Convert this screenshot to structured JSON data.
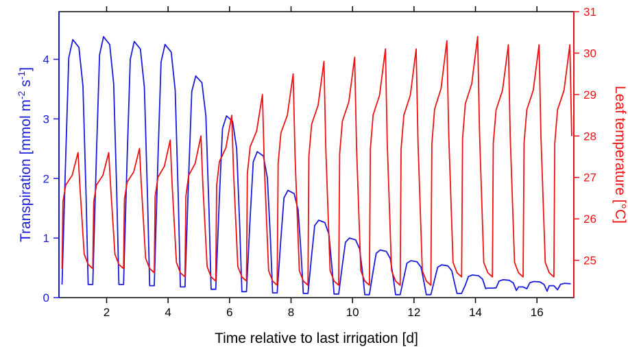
{
  "chart_data": {
    "type": "line",
    "title": "",
    "xlabel": "Time relative to last irrigation [d]",
    "ylabel_left": "Transpiration [mmol m-2 s-1]",
    "ylabel_left_parts": {
      "base": "Transpiration [mmol m",
      "sup1": "-2",
      "mid": " s",
      "sup2": "-1",
      "end": "]"
    },
    "ylabel_right": "Leaf temperature [°C]",
    "xlim": [
      0.45,
      17.2
    ],
    "ylim_left": [
      0,
      4.8
    ],
    "ylim_right": [
      24.1,
      31
    ],
    "x_ticks": [
      2,
      4,
      6,
      8,
      10,
      12,
      14,
      16
    ],
    "x_tick_labels": [
      "2",
      "4",
      "6",
      "8",
      "10",
      "12",
      "14",
      "16"
    ],
    "y_left_ticks": [
      0,
      1,
      2,
      3,
      4
    ],
    "y_left_tick_labels": [
      "0",
      "1",
      "2",
      "3",
      "4"
    ],
    "y_right_ticks": [
      25,
      26,
      27,
      28,
      29,
      30,
      31
    ],
    "y_right_tick_labels": [
      "25",
      "26",
      "27",
      "28",
      "29",
      "30",
      "31"
    ],
    "grid": false,
    "legend": "none",
    "colors": {
      "transpiration": "#1a1adc",
      "leaf_temperature": "#ee1111",
      "axes": "#000000"
    },
    "series": [
      {
        "axis": "left",
        "days": [
          {
            "start": 0.55,
            "peak": 4.33,
            "night": 0.22
          },
          {
            "start": 1.55,
            "peak": 4.38,
            "night": 0.22
          },
          {
            "start": 2.55,
            "peak": 4.3,
            "night": 0.22
          },
          {
            "start": 3.55,
            "peak": 4.25,
            "night": 0.2
          },
          {
            "start": 4.55,
            "peak": 3.72,
            "night": 0.18
          },
          {
            "start": 5.55,
            "peak": 3.05,
            "night": 0.14
          },
          {
            "start": 6.55,
            "peak": 2.45,
            "night": 0.1
          },
          {
            "start": 7.55,
            "peak": 1.8,
            "night": 0.08
          },
          {
            "start": 8.55,
            "peak": 1.3,
            "night": 0.07
          },
          {
            "start": 9.55,
            "peak": 1.0,
            "night": 0.06
          },
          {
            "start": 10.55,
            "peak": 0.8,
            "night": 0.05
          },
          {
            "start": 11.55,
            "peak": 0.62,
            "night": 0.05
          },
          {
            "start": 12.55,
            "peak": 0.55,
            "night": 0.05
          },
          {
            "start": 13.55,
            "peak": 0.38,
            "night": 0.07
          },
          {
            "start": 14.55,
            "peak": 0.3,
            "night": 0.16
          },
          {
            "start": 15.55,
            "peak": 0.27,
            "night": 0.18
          },
          {
            "start": 16.55,
            "peak": 0.24,
            "night": 0.2
          }
        ]
      },
      {
        "axis": "right",
        "days": [
          {
            "start": 0.55,
            "peak": 27.6,
            "night": 24.8
          },
          {
            "start": 1.55,
            "peak": 27.6,
            "night": 24.8
          },
          {
            "start": 2.55,
            "peak": 27.7,
            "night": 24.8
          },
          {
            "start": 3.55,
            "peak": 27.9,
            "night": 24.7
          },
          {
            "start": 4.55,
            "peak": 28.0,
            "night": 24.6
          },
          {
            "start": 5.55,
            "peak": 28.5,
            "night": 24.5
          },
          {
            "start": 6.55,
            "peak": 29.0,
            "night": 24.5
          },
          {
            "start": 7.55,
            "peak": 29.5,
            "night": 24.4
          },
          {
            "start": 8.55,
            "peak": 29.8,
            "night": 24.4
          },
          {
            "start": 9.55,
            "peak": 29.9,
            "night": 24.4
          },
          {
            "start": 10.55,
            "peak": 30.1,
            "night": 24.4
          },
          {
            "start": 11.55,
            "peak": 30.1,
            "night": 24.4
          },
          {
            "start": 12.55,
            "peak": 30.3,
            "night": 24.4
          },
          {
            "start": 13.55,
            "peak": 30.4,
            "night": 24.6
          },
          {
            "start": 14.55,
            "peak": 30.2,
            "night": 24.6
          },
          {
            "start": 15.55,
            "peak": 30.2,
            "night": 24.6
          },
          {
            "start": 16.55,
            "peak": 30.2,
            "night": 24.6
          }
        ]
      }
    ]
  }
}
